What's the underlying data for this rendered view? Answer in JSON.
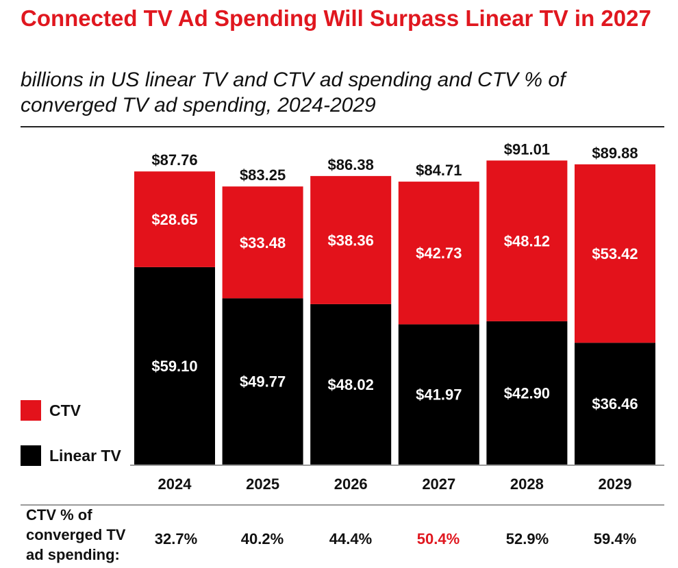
{
  "chart_data": {
    "type": "bar",
    "stacked": true,
    "title": "Connected TV Ad Spending Will Surpass Linear TV in 2027",
    "subtitle": "billions in US linear TV and CTV ad spending and CTV % of converged TV ad spending, 2024-2029",
    "categories": [
      "2024",
      "2025",
      "2026",
      "2027",
      "2028",
      "2029"
    ],
    "series": [
      {
        "name": "Linear TV",
        "color": "#000000",
        "values": [
          59.1,
          49.77,
          48.02,
          41.97,
          42.9,
          36.46
        ],
        "labels": [
          "$59.10",
          "$49.77",
          "$48.02",
          "$41.97",
          "$42.90",
          "$36.46"
        ]
      },
      {
        "name": "CTV",
        "color": "#e3121b",
        "values": [
          28.65,
          33.48,
          38.36,
          42.73,
          48.12,
          53.42
        ],
        "labels": [
          "$28.65",
          "$33.48",
          "$38.36",
          "$42.73",
          "$48.12",
          "$53.42"
        ]
      }
    ],
    "totals": [
      87.76,
      83.25,
      86.38,
      84.71,
      91.01,
      89.88
    ],
    "total_labels": [
      "$87.76",
      "$83.25",
      "$86.38",
      "$84.71",
      "$91.01",
      "$89.88"
    ],
    "legend": {
      "position": "bottom-left",
      "items": [
        {
          "label": "CTV",
          "color": "#e3121b"
        },
        {
          "label": "Linear TV",
          "color": "#000000"
        }
      ]
    },
    "ylim": [
      0,
      100
    ],
    "grid": false,
    "footer": {
      "label": "CTV % of converged TV ad spending:",
      "values": [
        "32.7%",
        "40.2%",
        "44.4%",
        "50.4%",
        "52.9%",
        "59.4%"
      ],
      "highlight_index": 3,
      "highlight_color": "#e0171f"
    }
  }
}
